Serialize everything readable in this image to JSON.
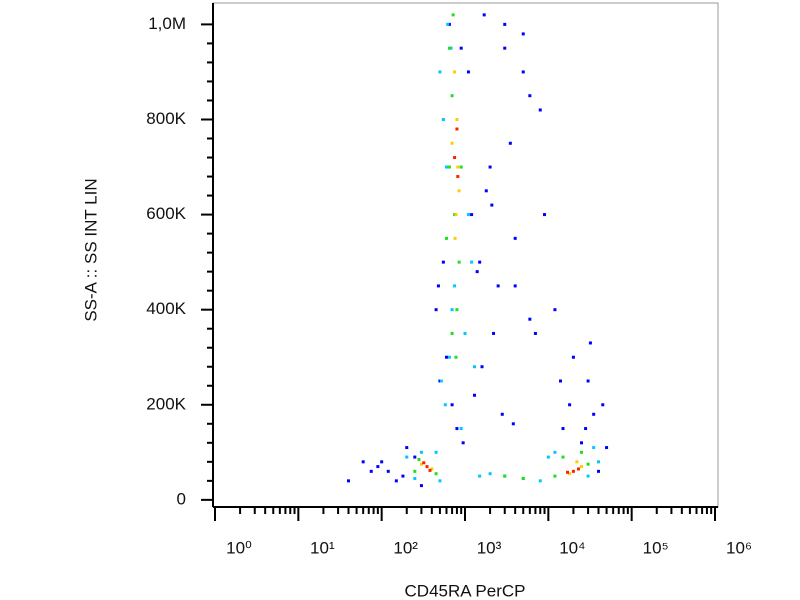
{
  "chart_data": {
    "type": "scatter",
    "x_label": "CD45RA PerCP",
    "y_label": "SS-A :: SS INT LIN",
    "xscale": "log",
    "xlim": [
      1,
      1000000
    ],
    "ylim": [
      -15000,
      1045000
    ],
    "xticks": [
      {
        "value": 1,
        "label": "10⁰"
      },
      {
        "value": 10,
        "label": "10¹"
      },
      {
        "value": 100,
        "label": "10²"
      },
      {
        "value": 1000,
        "label": "10³"
      },
      {
        "value": 10000,
        "label": "10⁴"
      },
      {
        "value": 100000,
        "label": "10⁵"
      },
      {
        "value": 1000000,
        "label": "10⁶"
      }
    ],
    "xminorticks": [
      2,
      3,
      4,
      5,
      6,
      7,
      8,
      9,
      20,
      30,
      40,
      50,
      60,
      70,
      80,
      90,
      200,
      300,
      400,
      500,
      600,
      700,
      800,
      900,
      2000,
      3000,
      4000,
      5000,
      6000,
      7000,
      8000,
      9000,
      20000,
      30000,
      40000,
      50000,
      60000,
      70000,
      80000,
      90000,
      200000,
      300000,
      400000,
      500000,
      600000,
      700000,
      800000,
      900000
    ],
    "yticks": [
      {
        "value": 0,
        "label": "0"
      },
      {
        "value": 200000,
        "label": "200K"
      },
      {
        "value": 400000,
        "label": "400K"
      },
      {
        "value": 600000,
        "label": "600K"
      },
      {
        "value": 800000,
        "label": "800K"
      },
      {
        "value": 1000000,
        "label": "1,0M"
      }
    ],
    "yminorticks": [
      40000,
      80000,
      120000,
      160000,
      240000,
      280000,
      320000,
      360000,
      440000,
      480000,
      520000,
      560000,
      640000,
      680000,
      720000,
      760000,
      840000,
      880000,
      920000,
      960000
    ],
    "series": [
      {
        "color": "#0000ff",
        "x": [
          120,
          180,
          250,
          90,
          60,
          40,
          3000,
          5000,
          8000,
          12000,
          20000,
          30000,
          45000,
          2000,
          4000,
          7000,
          15000,
          25000,
          35000,
          1500,
          2500,
          600,
          500,
          450,
          700,
          1200,
          1800,
          3500,
          6000,
          9000,
          3000,
          5000,
          2200,
          1600,
          1300,
          550,
          480,
          650,
          900,
          1100,
          4000,
          6000,
          14000,
          28000,
          32000,
          18000,
          2800,
          3800,
          200,
          150,
          300,
          100,
          75,
          50000,
          40000,
          1700,
          2100,
          1400,
          800,
          950
        ],
        "y": [
          60000,
          50000,
          90000,
          70000,
          80000,
          40000,
          950000,
          900000,
          820000,
          400000,
          300000,
          250000,
          200000,
          700000,
          550000,
          350000,
          150000,
          120000,
          180000,
          500000,
          450000,
          300000,
          250000,
          400000,
          200000,
          600000,
          650000,
          750000,
          850000,
          600000,
          1000000,
          980000,
          350000,
          280000,
          220000,
          500000,
          450000,
          1000000,
          950000,
          900000,
          450000,
          380000,
          250000,
          150000,
          330000,
          200000,
          180000,
          160000,
          110000,
          40000,
          30000,
          80000,
          60000,
          110000,
          60000,
          1020000,
          620000,
          480000,
          150000,
          120000
        ]
      },
      {
        "color": "#00c8ff",
        "x": [
          500,
          550,
          600,
          1200,
          1100,
          700,
          650,
          520,
          580,
          1000,
          1300,
          900,
          200,
          250,
          300,
          450,
          500,
          8000,
          10000,
          12000,
          40000,
          35000,
          30000,
          5000,
          3000,
          2000,
          1500,
          620,
          680,
          750
        ],
        "y": [
          900000,
          800000,
          700000,
          500000,
          600000,
          400000,
          300000,
          250000,
          200000,
          350000,
          280000,
          150000,
          90000,
          45000,
          100000,
          100000,
          40000,
          40000,
          90000,
          100000,
          80000,
          110000,
          50000,
          45000,
          50000,
          55000,
          50000,
          1000000,
          950000,
          450000
        ]
      },
      {
        "color": "#22dd22",
        "x": [
          650,
          700,
          750,
          600,
          850,
          900,
          800,
          700,
          650,
          250,
          280,
          450,
          15000,
          12000,
          30000,
          25000,
          5000,
          3000,
          720,
          780
        ],
        "y": [
          950000,
          850000,
          600000,
          550000,
          500000,
          700000,
          400000,
          350000,
          700000,
          60000,
          85000,
          55000,
          90000,
          50000,
          75000,
          100000,
          45000,
          50000,
          1020000,
          300000
        ]
      },
      {
        "color": "#ffcc00",
        "x": [
          750,
          800,
          700,
          850,
          780,
          300,
          400,
          18000,
          25000,
          22000,
          820,
          760
        ],
        "y": [
          900000,
          800000,
          750000,
          650000,
          600000,
          75000,
          65000,
          55000,
          70000,
          80000,
          700000,
          550000
        ]
      },
      {
        "color": "#ff2000",
        "x": [
          800,
          750,
          820,
          350,
          380,
          320,
          20000,
          23000,
          17000
        ],
        "y": [
          780000,
          720000,
          680000,
          70000,
          62000,
          78000,
          60000,
          65000,
          58000
        ]
      }
    ]
  }
}
